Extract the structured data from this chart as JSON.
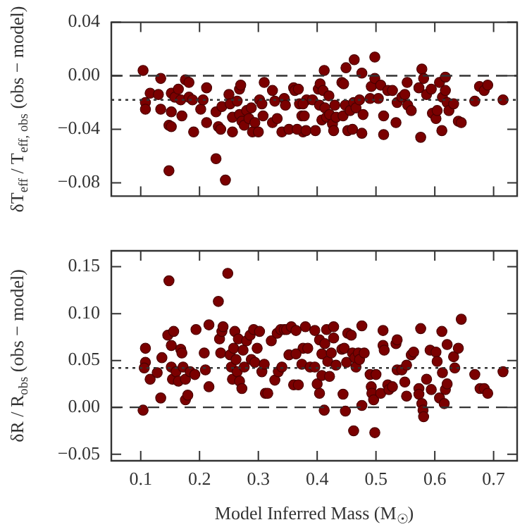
{
  "chart_data": [
    {
      "type": "scatter",
      "ylabel": "δT$_{eff}$ / T$_{eff, obs}$ (obs − model)",
      "color": "#7b0000",
      "marker": "circle",
      "tick_labels": "y",
      "grid": false,
      "legend": false,
      "xlim": [
        0.05,
        0.74
      ],
      "xticks": [
        0.1,
        0.2,
        0.3,
        0.4,
        0.5,
        0.6,
        0.7
      ],
      "ylim": [
        -0.09,
        0.04
      ],
      "yticks": [
        0.04,
        {
          "value": 0,
          "label": "0.00"
        },
        {
          "value": -0.04,
          "label": "−0.04"
        },
        {
          "value": -0.08,
          "label": "−0.08"
        }
      ],
      "ref_lines": [
        {
          "axis": "y",
          "value": 0,
          "line_style": "dashed",
          "color": "#333333"
        },
        {
          "axis": "y",
          "value": -0.018,
          "line_style": "dotted",
          "color": "#333333"
        }
      ],
      "x": [
        0.104,
        0.108,
        0.108,
        0.116,
        0.13,
        0.134,
        0.134,
        0.148,
        0.152,
        0.148,
        0.152,
        0.152,
        0.158,
        0.164,
        0.168,
        0.17,
        0.176,
        0.182,
        0.182,
        0.188,
        0.19,
        0.202,
        0.206,
        0.212,
        0.212,
        0.228,
        0.228,
        0.232,
        0.238,
        0.236,
        0.244,
        0.25,
        0.252,
        0.256,
        0.256,
        0.264,
        0.268,
        0.27,
        0.268,
        0.272,
        0.276,
        0.28,
        0.284,
        0.288,
        0.29,
        0.294,
        0.3,
        0.302,
        0.306,
        0.308,
        0.31,
        0.324,
        0.324,
        0.328,
        0.332,
        0.34,
        0.344,
        0.346,
        0.352,
        0.36,
        0.362,
        0.37,
        0.374,
        0.376,
        0.382,
        0.368,
        0.376,
        0.366,
        0.378,
        0.381,
        0.392,
        0.397,
        0.402,
        0.405,
        0.404,
        0.408,
        0.41,
        0.412,
        0.413,
        0.416,
        0.42,
        0.421,
        0.426,
        0.428,
        0.43,
        0.432,
        0.442,
        0.445,
        0.444,
        0.448,
        0.449,
        0.452,
        0.456,
        0.46,
        0.462,
        0.463,
        0.466,
        0.472,
        0.476,
        0.476,
        0.478,
        0.49,
        0.492,
        0.498,
        0.498,
        0.504,
        0.508,
        0.513,
        0.513,
        0.52,
        0.528,
        0.534,
        0.536,
        0.544,
        0.549,
        0.553,
        0.554,
        0.56,
        0.573,
        0.576,
        0.578,
        0.581,
        0.586,
        0.594,
        0.596,
        0.602,
        0.604,
        0.608,
        0.613,
        0.612,
        0.618,
        0.618,
        0.621,
        0.624,
        0.632,
        0.64,
        0.645,
        0.668,
        0.676,
        0.684,
        0.69,
        0.716
      ],
      "values": [
        0.004,
        -0.02,
        -0.025,
        -0.013,
        -0.014,
        -0.002,
        -0.025,
        -0.071,
        -0.027,
        -0.037,
        -0.038,
        -0.013,
        -0.016,
        -0.01,
        -0.018,
        -0.03,
        -0.003,
        -0.005,
        -0.016,
        -0.018,
        -0.042,
        -0.025,
        -0.018,
        -0.009,
        -0.035,
        -0.062,
        -0.027,
        -0.038,
        -0.023,
        -0.04,
        -0.078,
        -0.014,
        -0.021,
        -0.031,
        -0.042,
        -0.019,
        -0.01,
        -0.007,
        -0.029,
        -0.034,
        -0.037,
        -0.026,
        -0.032,
        -0.024,
        -0.042,
        -0.035,
        -0.042,
        -0.018,
        -0.021,
        -0.03,
        -0.005,
        -0.011,
        -0.035,
        -0.019,
        -0.032,
        -0.042,
        -0.017,
        -0.022,
        -0.04,
        -0.009,
        -0.011,
        -0.021,
        -0.03,
        -0.042,
        -0.018,
        -0.01,
        -0.021,
        -0.04,
        -0.03,
        -0.041,
        -0.018,
        -0.041,
        -0.01,
        -0.006,
        -0.022,
        -0.033,
        -0.011,
        0.004,
        -0.024,
        -0.031,
        -0.015,
        -0.029,
        -0.036,
        -0.041,
        -0.022,
        -0.031,
        -0.005,
        -0.006,
        -0.03,
        -0.022,
        0.006,
        -0.041,
        -0.026,
        -0.04,
        -0.02,
        0.012,
        -0.024,
        -0.018,
        0.002,
        -0.043,
        -0.029,
        -0.017,
        -0.008,
        0.014,
        -0.002,
        -0.017,
        -0.007,
        -0.03,
        -0.044,
        -0.011,
        -0.011,
        -0.035,
        -0.02,
        -0.016,
        -0.014,
        -0.005,
        -0.022,
        -0.026,
        -0.009,
        -0.046,
        0.005,
        -0.002,
        -0.014,
        -0.01,
        -0.028,
        -0.032,
        -0.026,
        -0.005,
        -0.016,
        -0.041,
        -0.001,
        -0.011,
        -0.02,
        -0.026,
        -0.021,
        -0.034,
        -0.035,
        -0.019,
        -0.008,
        -0.011,
        -0.007,
        -0.018
      ]
    },
    {
      "type": "scatter",
      "ylabel": "δR / R$_{obs}$ (obs − model)",
      "xlabel": "Model Inferred Mass (M$_{☉}$)",
      "color": "#7b0000",
      "marker": "circle",
      "grid": false,
      "legend": false,
      "xlim": [
        0.05,
        0.74
      ],
      "xticks": [
        0.1,
        0.2,
        0.3,
        0.4,
        0.5,
        0.6,
        0.7
      ],
      "ylim": [
        -0.057,
        0.167
      ],
      "yticks": [
        0.15,
        {
          "value": 0.1,
          "label": "0.10"
        },
        0.05,
        {
          "value": 0,
          "label": "0.00"
        },
        {
          "value": -0.05,
          "label": "−0.05"
        }
      ],
      "ref_lines": [
        {
          "axis": "y",
          "value": 0,
          "line_style": "dashed",
          "color": "#333333"
        },
        {
          "axis": "y",
          "value": 0.042,
          "line_style": "dotted",
          "color": "#333333"
        }
      ],
      "x": [
        0.104,
        0.108,
        0.108,
        0.106,
        0.116,
        0.128,
        0.134,
        0.136,
        0.148,
        0.146,
        0.152,
        0.156,
        0.152,
        0.154,
        0.16,
        0.164,
        0.168,
        0.17,
        0.172,
        0.176,
        0.18,
        0.176,
        0.184,
        0.192,
        0.194,
        0.208,
        0.21,
        0.216,
        0.216,
        0.232,
        0.234,
        0.236,
        0.238,
        0.24,
        0.248,
        0.252,
        0.254,
        0.256,
        0.258,
        0.26,
        0.262,
        0.264,
        0.266,
        0.268,
        0.272,
        0.274,
        0.276,
        0.28,
        0.286,
        0.288,
        0.292,
        0.294,
        0.298,
        0.302,
        0.306,
        0.31,
        0.312,
        0.316,
        0.322,
        0.328,
        0.332,
        0.334,
        0.338,
        0.34,
        0.344,
        0.348,
        0.352,
        0.356,
        0.36,
        0.374,
        0.376,
        0.38,
        0.364,
        0.364,
        0.368,
        0.384,
        0.388,
        0.396,
        0.396,
        0.4,
        0.404,
        0.404,
        0.408,
        0.408,
        0.412,
        0.413,
        0.416,
        0.418,
        0.421,
        0.424,
        0.428,
        0.428,
        0.432,
        0.442,
        0.444,
        0.446,
        0.448,
        0.45,
        0.452,
        0.458,
        0.46,
        0.462,
        0.464,
        0.466,
        0.47,
        0.472,
        0.476,
        0.476,
        0.48,
        0.49,
        0.492,
        0.493,
        0.496,
        0.498,
        0.5,
        0.508,
        0.512,
        0.512,
        0.514,
        0.52,
        0.522,
        0.528,
        0.534,
        0.536,
        0.536,
        0.544,
        0.549,
        0.552,
        0.552,
        0.56,
        0.564,
        0.573,
        0.573,
        0.576,
        0.578,
        0.58,
        0.581,
        0.586,
        0.592,
        0.594,
        0.602,
        0.604,
        0.608,
        0.612,
        0.613,
        0.616,
        0.618,
        0.621,
        0.621,
        0.632,
        0.634,
        0.64,
        0.645,
        0.668,
        0.677,
        0.684,
        0.69,
        0.716
      ],
      "values": [
        -0.003,
        0.063,
        0.048,
        0.042,
        0.03,
        0.037,
        0.01,
        0.053,
        0.135,
        0.077,
        0.066,
        0.081,
        0.043,
        0.03,
        0.038,
        0.028,
        0.062,
        0.058,
        0.043,
        0.008,
        0.013,
        0.03,
        0.038,
        0.035,
        0.083,
        0.058,
        0.04,
        0.088,
        0.022,
        0.113,
        0.073,
        0.058,
        0.081,
        0.086,
        0.143,
        0.056,
        0.043,
        0.03,
        0.063,
        0.081,
        0.051,
        0.038,
        0.073,
        0.028,
        0.02,
        0.061,
        0.043,
        0.071,
        0.077,
        0.051,
        0.083,
        0.048,
        0.063,
        0.081,
        0.038,
        0.046,
        0.015,
        0.015,
        0.071,
        0.029,
        0.079,
        0.038,
        0.083,
        0.043,
        0.083,
        0.083,
        0.056,
        0.086,
        0.024,
        0.046,
        0.063,
        0.086,
        0.082,
        0.057,
        0.024,
        0.063,
        0.043,
        0.043,
        0.082,
        0.025,
        0.072,
        0.015,
        0.057,
        0.034,
        -0.003,
        0.068,
        0.083,
        0.049,
        0.033,
        0.058,
        0.086,
        0.074,
        0.045,
        0.062,
        0.014,
        0.063,
        -0.004,
        0.048,
        0.079,
        0.077,
        0.058,
        -0.025,
        0.053,
        0.043,
        0.058,
        0.051,
        0.087,
        0.002,
        0.058,
        0.035,
        0.022,
        0.015,
        0.008,
        -0.027,
        0.035,
        0.015,
        0.082,
        0.066,
        0.061,
        0.024,
        0.019,
        0.022,
        0.068,
        0.072,
        0.04,
        0.04,
        0.027,
        0.012,
        0.045,
        0.056,
        0.059,
        0.02,
        0.014,
        0.084,
        0.004,
        -0.003,
        -0.01,
        0.03,
        0.061,
        0.019,
        0.059,
        0.049,
        0.01,
        0.081,
        0.037,
        0.004,
        0.019,
        0.067,
        0.025,
        0.054,
        0.042,
        0.063,
        0.094,
        0.035,
        0.02,
        0.02,
        0.015,
        0.038
      ]
    }
  ]
}
